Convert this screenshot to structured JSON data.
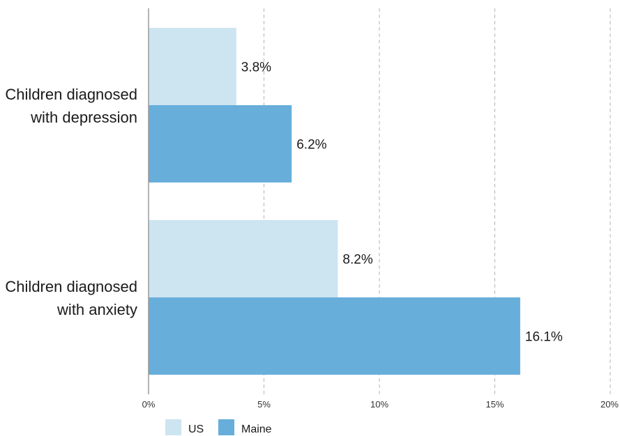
{
  "chart_data": {
    "type": "bar",
    "orientation": "horizontal",
    "categories": [
      [
        "Children diagnosed",
        "with depression"
      ],
      [
        "Children diagnosed",
        "with anxiety"
      ]
    ],
    "series": [
      {
        "name": "US",
        "values": [
          3.8,
          8.2
        ],
        "labels": [
          "3.8%",
          "8.2%"
        ],
        "color": "#cde4f1"
      },
      {
        "name": "Maine",
        "values": [
          6.2,
          16.1
        ],
        "labels": [
          "6.2%",
          "16.1%"
        ],
        "color": "#67aedb"
      }
    ],
    "xlim": [
      0,
      20
    ],
    "xticks": [
      0,
      5,
      10,
      15,
      20
    ],
    "xtick_labels": [
      "0%",
      "5%",
      "10%",
      "15%",
      "20%"
    ],
    "grid": "vertical dashed",
    "legend_position": "bottom-left",
    "title": "",
    "xlabel": "",
    "ylabel": ""
  }
}
